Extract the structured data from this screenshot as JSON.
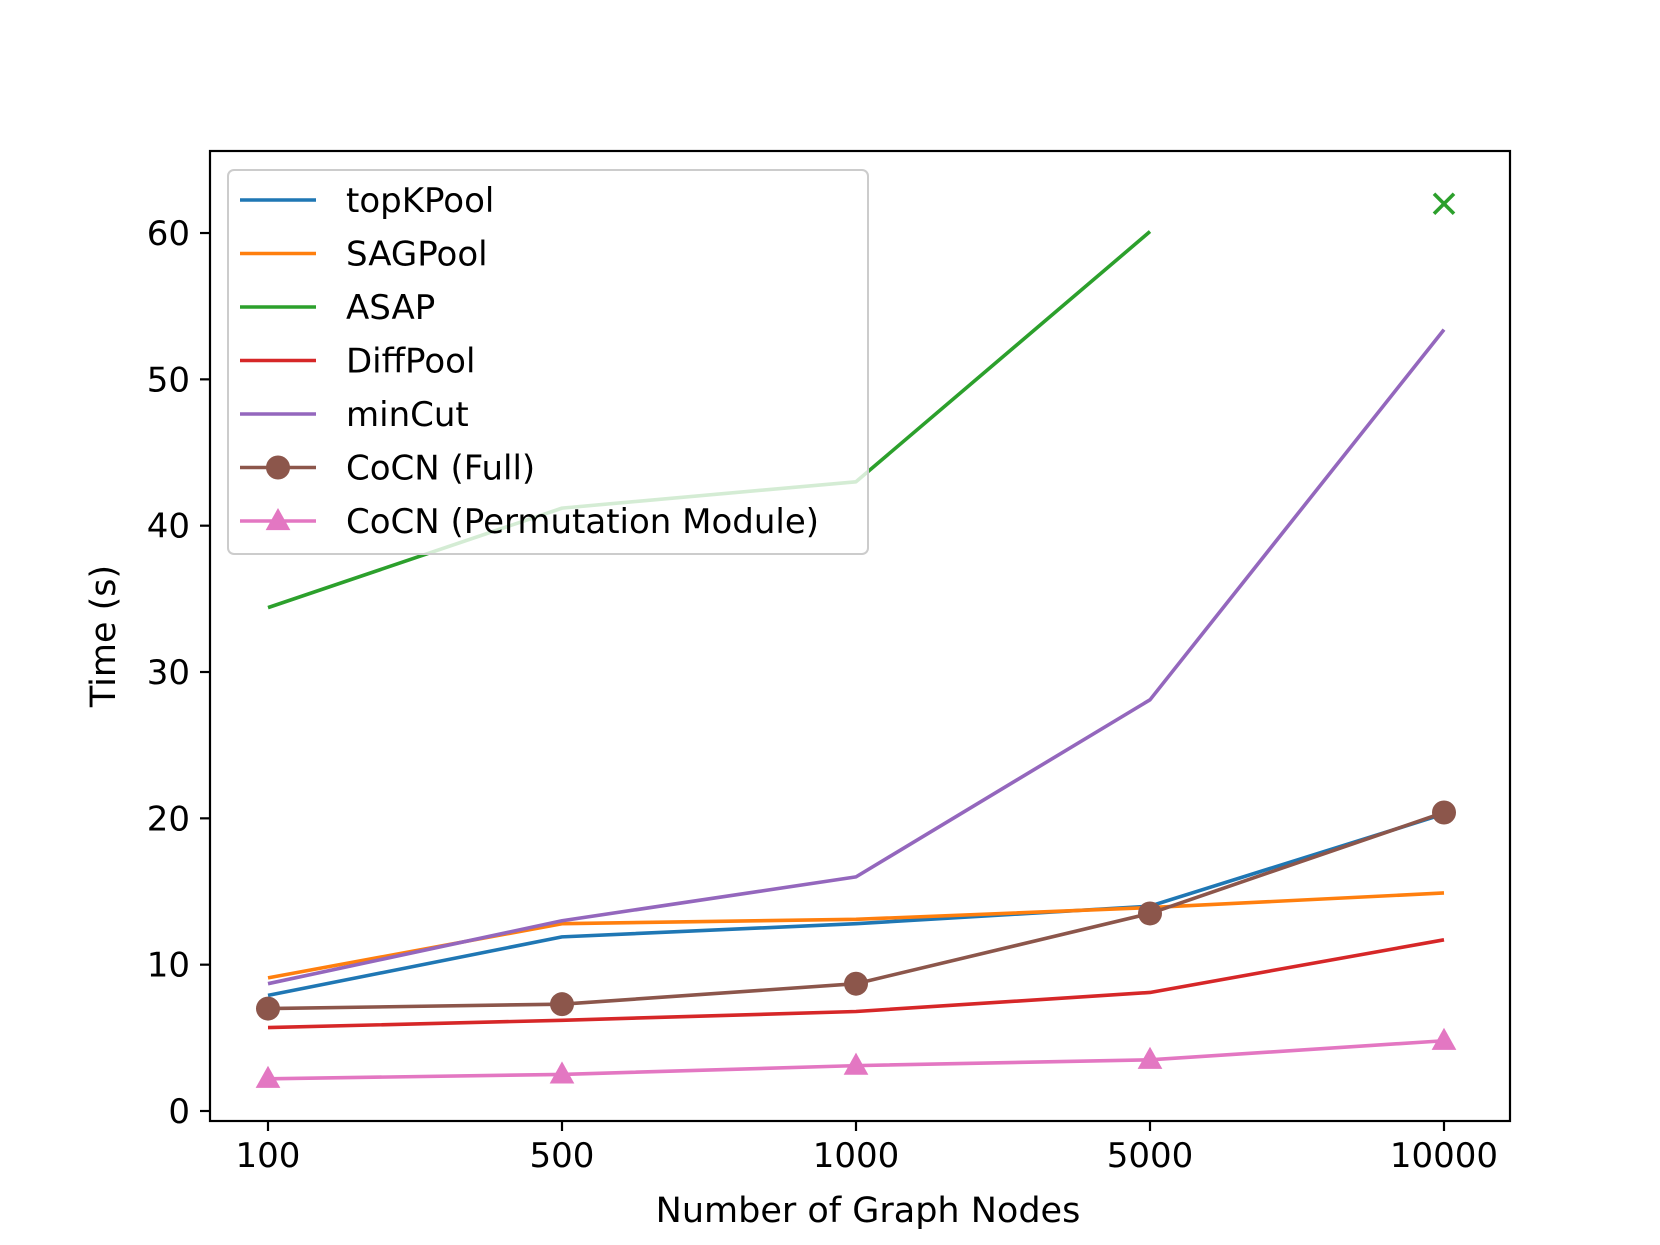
{
  "chart_data": {
    "type": "line",
    "title": "",
    "xlabel": "Number of Graph Nodes",
    "ylabel": "Time (s)",
    "categories": [
      "100",
      "500",
      "1000",
      "5000",
      "10000"
    ],
    "ylim": [
      -0.8,
      65.5
    ],
    "yticks": [
      0,
      10,
      20,
      30,
      40,
      50,
      60
    ],
    "grid": false,
    "legend_position": "top-left",
    "series": [
      {
        "name": "topKPool",
        "color": "#1f77b4",
        "marker": "none",
        "values": [
          7.9,
          11.9,
          12.8,
          14.0,
          20.3
        ]
      },
      {
        "name": "SAGPool",
        "color": "#ff7f0e",
        "marker": "none",
        "values": [
          9.1,
          12.8,
          13.1,
          13.9,
          14.9
        ]
      },
      {
        "name": "ASAP",
        "color": "#2ca02c",
        "marker": "none",
        "values": [
          34.4,
          41.2,
          43.0,
          60.1,
          null
        ]
      },
      {
        "name": "DiffPool",
        "color": "#d62728",
        "marker": "none",
        "values": [
          5.7,
          6.2,
          6.8,
          8.1,
          11.7
        ]
      },
      {
        "name": "minCut",
        "color": "#9467bd",
        "marker": "none",
        "values": [
          8.7,
          13.0,
          16.0,
          28.1,
          53.4
        ]
      },
      {
        "name": "CoCN (Full)",
        "color": "#8c564b",
        "marker": "circle",
        "values": [
          7.0,
          7.3,
          8.7,
          13.5,
          20.4
        ]
      },
      {
        "name": "CoCN (Permutation Module)",
        "color": "#e377c2",
        "marker": "triangle",
        "values": [
          2.2,
          2.5,
          3.1,
          3.5,
          4.8
        ]
      }
    ],
    "annotations": [
      {
        "series": "ASAP",
        "category": "10000",
        "y": 62.0,
        "marker": "x",
        "color": "#2ca02c"
      }
    ]
  }
}
